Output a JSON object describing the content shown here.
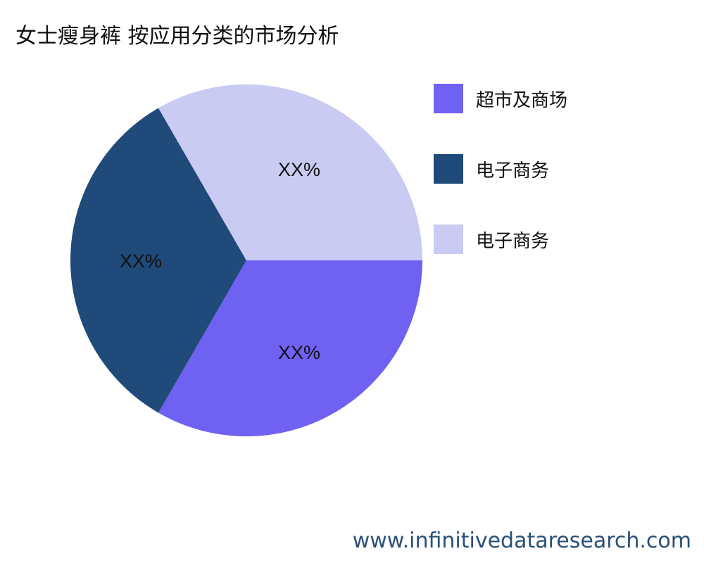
{
  "chart_data": {
    "type": "pie",
    "title": "女士瘦身裤 按应用分类的市场分析",
    "slices": [
      {
        "name": "超市及商场",
        "value": 33.33,
        "label": "XX%",
        "color": "#6F61F2"
      },
      {
        "name": "电子商务",
        "value": 33.33,
        "label": "XX%",
        "color": "#1F4A7A"
      },
      {
        "name": "电子商务",
        "value": 33.33,
        "label": "XX%",
        "color": "#C9CBF2"
      }
    ],
    "legend_placement": "right"
  },
  "watermark": "www.infinitivedataresearch.com"
}
